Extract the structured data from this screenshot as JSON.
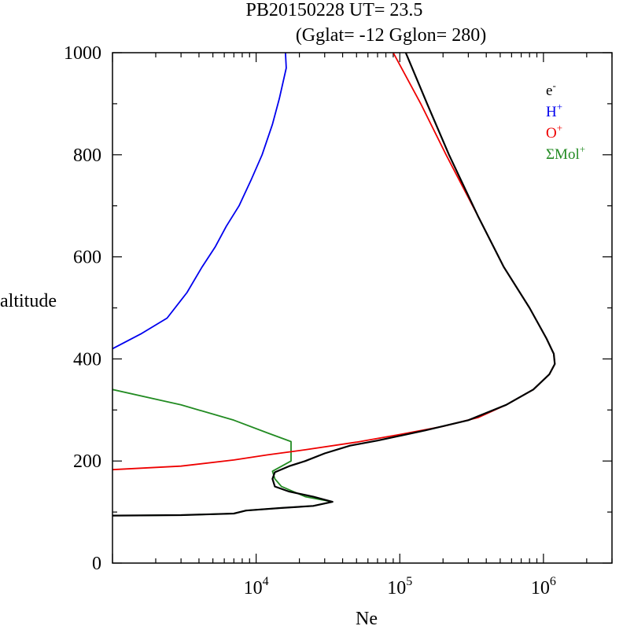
{
  "chart_data": {
    "type": "line",
    "title_line1": "PB20150228   UT=  23.5",
    "title_line2": "(Gglat= -12   Gglon=  280)",
    "xlabel": "Ne",
    "ylabel": "altitude",
    "x_scale": "log",
    "xlim": [
      1000,
      3000000
    ],
    "ylim": [
      0,
      1000
    ],
    "grid": false,
    "legend_placement": "top-right",
    "y_ticks": [
      {
        "value": 0,
        "label": "0"
      },
      {
        "value": 200,
        "label": "200"
      },
      {
        "value": 400,
        "label": "400"
      },
      {
        "value": 600,
        "label": "600"
      },
      {
        "value": 800,
        "label": "800"
      },
      {
        "value": 1000,
        "label": "1000"
      }
    ],
    "x_ticks": [
      {
        "value": 10000,
        "base": "10",
        "exp": "4"
      },
      {
        "value": 100000,
        "base": "10",
        "exp": "5"
      },
      {
        "value": 1000000,
        "base": "10",
        "exp": "6"
      }
    ],
    "series": [
      {
        "key": "electron",
        "name": "e",
        "sup": "-",
        "color": "#000000",
        "points": [
          [
            1000,
            93
          ],
          [
            3000,
            94
          ],
          [
            7000,
            97
          ],
          [
            8500,
            103
          ],
          [
            15000,
            108
          ],
          [
            25000,
            112
          ],
          [
            34000,
            120
          ],
          [
            25000,
            130
          ],
          [
            17000,
            140
          ],
          [
            13500,
            150
          ],
          [
            13000,
            165
          ],
          [
            13500,
            178
          ],
          [
            17000,
            190
          ],
          [
            22000,
            200
          ],
          [
            30000,
            215
          ],
          [
            45000,
            230
          ],
          [
            70000,
            240
          ],
          [
            150000,
            260
          ],
          [
            300000,
            280
          ],
          [
            550000,
            310
          ],
          [
            850000,
            340
          ],
          [
            1100000,
            370
          ],
          [
            1200000,
            390
          ],
          [
            1180000,
            410
          ],
          [
            1050000,
            440
          ],
          [
            800000,
            500
          ],
          [
            530000,
            580
          ],
          [
            350000,
            680
          ],
          [
            220000,
            800
          ],
          [
            155000,
            900
          ],
          [
            110000,
            1000
          ]
        ]
      },
      {
        "key": "hplus",
        "name": "H",
        "sup": "+",
        "color": "#0000ee",
        "points": [
          [
            1000,
            420
          ],
          [
            1600,
            450
          ],
          [
            2400,
            480
          ],
          [
            3300,
            530
          ],
          [
            4200,
            580
          ],
          [
            5200,
            620
          ],
          [
            6200,
            660
          ],
          [
            7600,
            700
          ],
          [
            9200,
            750
          ],
          [
            11000,
            800
          ],
          [
            13000,
            860
          ],
          [
            14500,
            910
          ],
          [
            16200,
            970
          ],
          [
            16000,
            1000
          ]
        ]
      },
      {
        "key": "oplus",
        "name": "O",
        "sup": "+",
        "color": "#ee0000",
        "points": [
          [
            1000,
            183
          ],
          [
            3000,
            190
          ],
          [
            7000,
            202
          ],
          [
            12000,
            212
          ],
          [
            22000,
            222
          ],
          [
            50000,
            237
          ],
          [
            100000,
            252
          ],
          [
            200000,
            268
          ],
          [
            350000,
            285
          ],
          [
            550000,
            310
          ],
          [
            850000,
            340
          ],
          [
            1100000,
            370
          ],
          [
            1200000,
            390
          ],
          [
            1180000,
            410
          ],
          [
            1050000,
            440
          ],
          [
            800000,
            500
          ],
          [
            530000,
            580
          ],
          [
            350000,
            680
          ],
          [
            210000,
            800
          ],
          [
            140000,
            900
          ],
          [
            90000,
            1000
          ]
        ]
      },
      {
        "key": "molplus",
        "name": "ΣMol",
        "sup": "+",
        "color": "#228b22",
        "points": [
          [
            1000,
            340
          ],
          [
            3000,
            310
          ],
          [
            7000,
            280
          ],
          [
            12000,
            255
          ],
          [
            17500,
            238
          ],
          [
            17500,
            200
          ],
          [
            13000,
            180
          ],
          [
            13500,
            165
          ],
          [
            15000,
            150
          ],
          [
            22000,
            130
          ],
          [
            34000,
            120
          ],
          [
            25000,
            112
          ],
          [
            15000,
            108
          ],
          [
            8500,
            103
          ],
          [
            7000,
            97
          ],
          [
            3000,
            94
          ],
          [
            1000,
            93
          ]
        ]
      }
    ]
  }
}
